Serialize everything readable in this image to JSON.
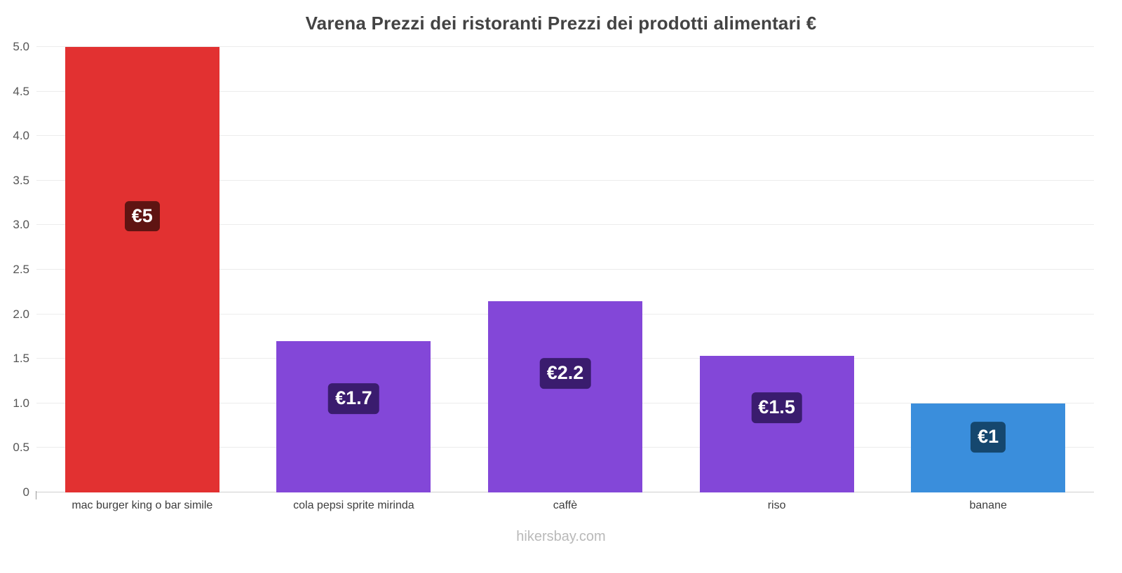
{
  "chart_data": {
    "type": "bar",
    "title": "Varena Prezzi dei ristoranti Prezzi dei prodotti alimentari €",
    "categories": [
      "mac burger king o bar simile",
      "cola pepsi sprite mirinda",
      "caffè",
      "riso",
      "banane"
    ],
    "values": [
      5,
      1.7,
      2.15,
      1.53,
      1
    ],
    "value_labels": [
      "€5",
      "€1.7",
      "€2.2",
      "€1.5",
      "€1"
    ],
    "bar_colors": [
      "#e23131",
      "#8347d8",
      "#8347d8",
      "#8347d8",
      "#3a8edc"
    ],
    "label_bg_colors": [
      "#5f1412",
      "#3a1c6e",
      "#3a1c6e",
      "#3a1c6e",
      "#15476e"
    ],
    "ylim": [
      0,
      5
    ],
    "yticks": [
      0,
      0.5,
      1,
      1.5,
      2,
      2.5,
      3,
      3.5,
      4,
      4.5,
      5
    ],
    "grid": true,
    "legend": false,
    "xlabel": "",
    "ylabel": ""
  },
  "footer": {
    "text": "hikersbay.com"
  }
}
